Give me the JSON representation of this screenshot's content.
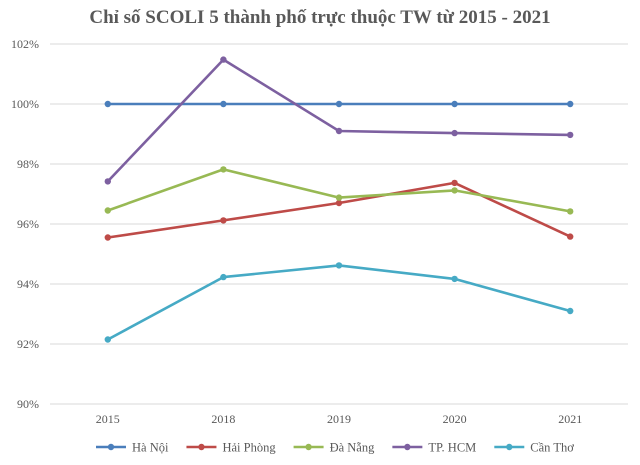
{
  "chart_data": {
    "type": "line",
    "title": "Chỉ số SCOLI 5 thành phố trực thuộc TW từ 2015 - 2021",
    "xlabel": "",
    "ylabel": "",
    "categories": [
      "2015",
      "2018",
      "2019",
      "2020",
      "2021"
    ],
    "ylim": [
      90,
      102
    ],
    "yticks": [
      90,
      92,
      94,
      96,
      98,
      100,
      102
    ],
    "y_tick_suffix": "%",
    "grid": true,
    "legend_position": "bottom",
    "series": [
      {
        "name": "Hà Nội",
        "color": "#4a7ebb",
        "values": [
          100,
          100,
          100,
          100,
          100
        ]
      },
      {
        "name": "Hải Phòng",
        "color": "#be4b48",
        "values": [
          95.55,
          96.12,
          96.7,
          97.37,
          95.58
        ]
      },
      {
        "name": "Đà Nẵng",
        "color": "#98b954",
        "values": [
          96.45,
          97.82,
          96.88,
          97.12,
          96.42
        ]
      },
      {
        "name": "TP. HCM",
        "color": "#7d60a0",
        "values": [
          97.42,
          101.48,
          99.1,
          99.03,
          98.97
        ]
      },
      {
        "name": "Cần Thơ",
        "color": "#46aac5",
        "values": [
          92.15,
          94.23,
          94.62,
          94.17,
          93.1
        ]
      }
    ]
  }
}
